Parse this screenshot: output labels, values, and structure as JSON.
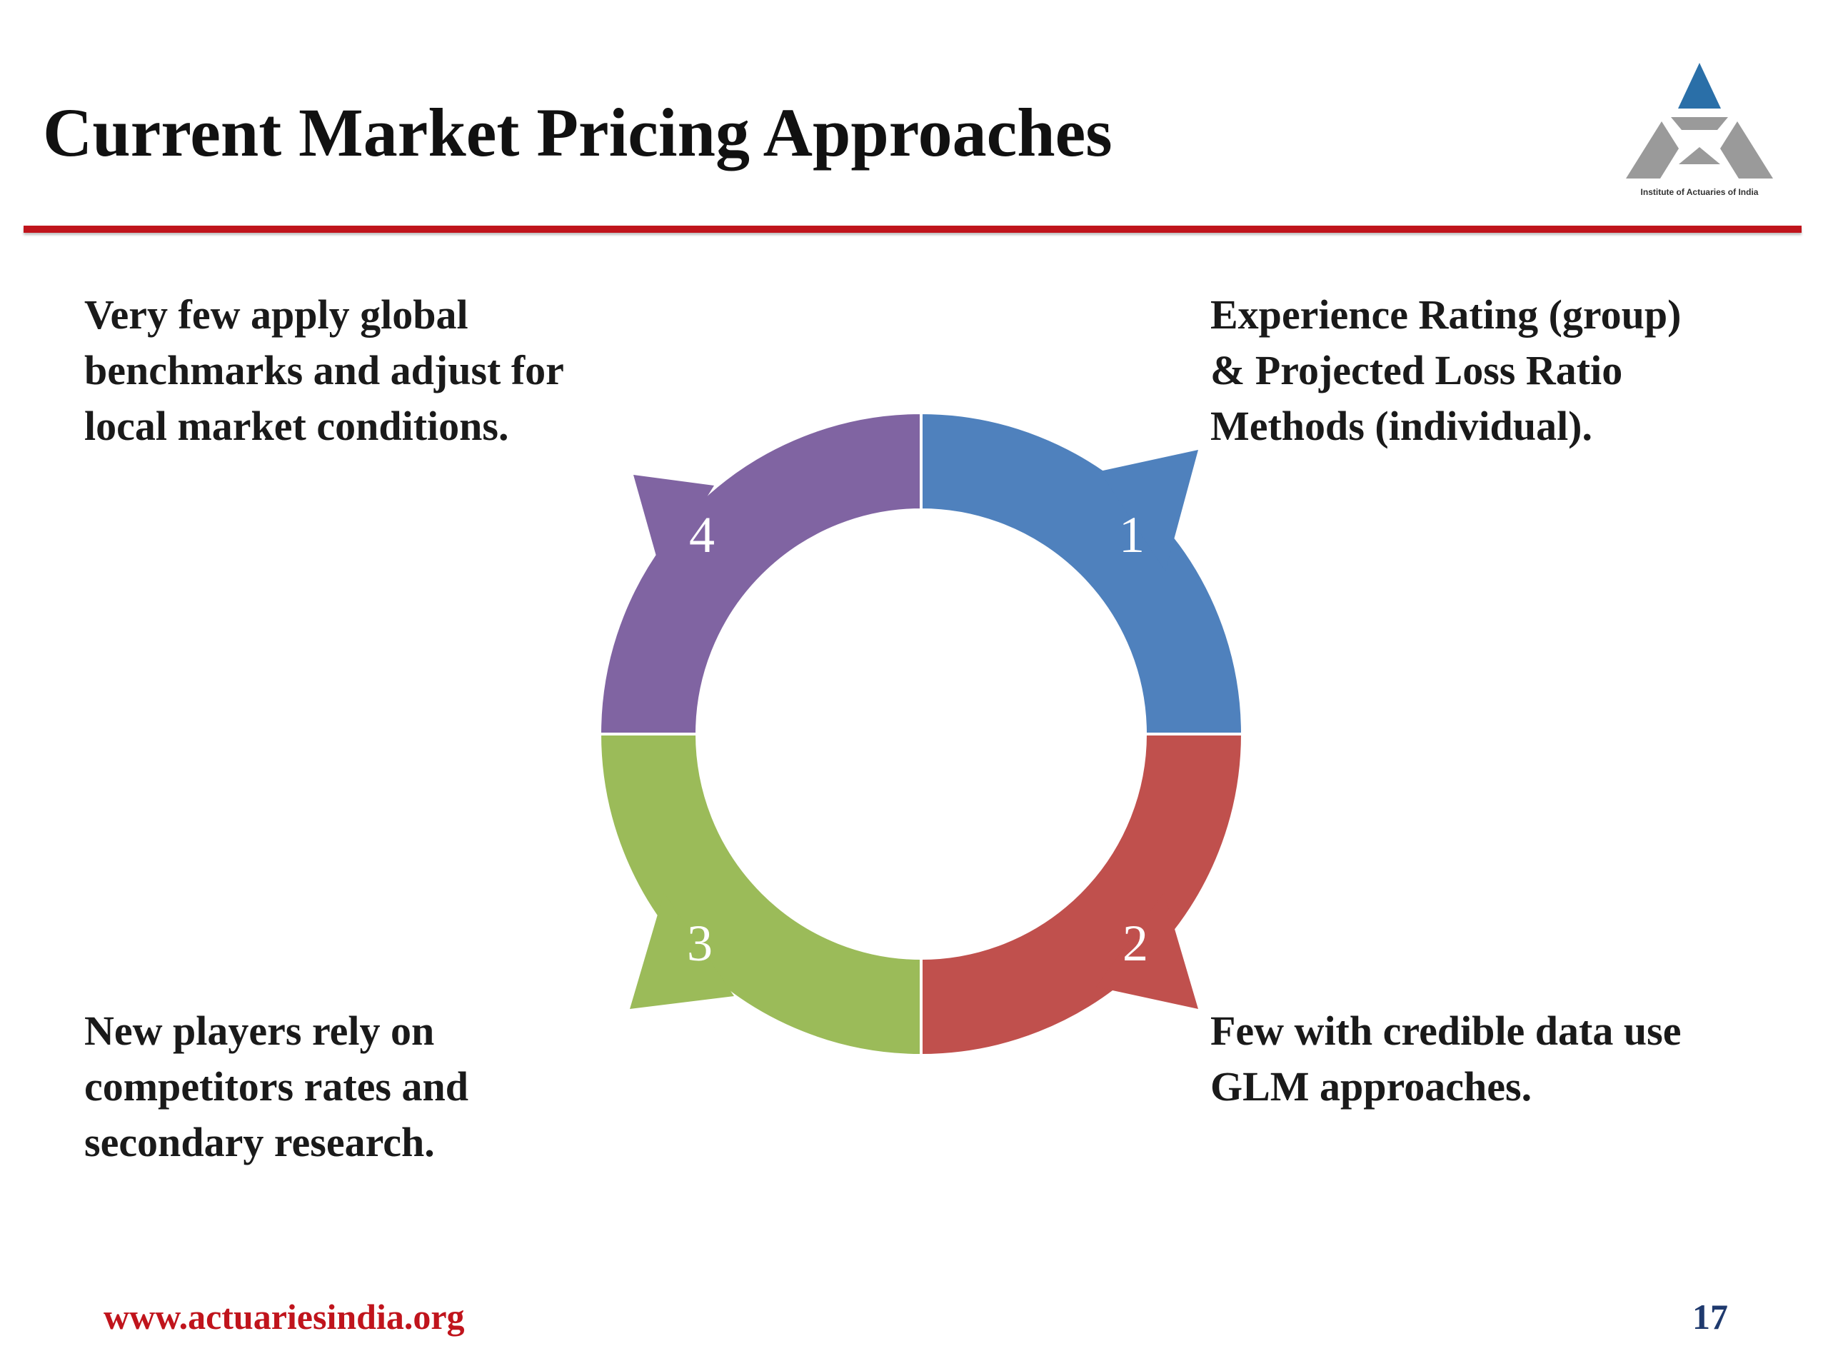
{
  "slide": {
    "title": "Current Market Pricing Approaches",
    "logo_text": "Institute of Actuaries of India",
    "footer_url": "www.actuariesindia.org",
    "page_number": "17"
  },
  "cycle": {
    "segments": [
      {
        "number": "1",
        "color": "#4f81bd",
        "text": "Experience Rating (group)\n& Projected Loss Ratio\nMethods (individual)."
      },
      {
        "number": "2",
        "color": "#c0504d",
        "text": "Few with credible data use\nGLM approaches."
      },
      {
        "number": "3",
        "color": "#9bbb59",
        "text": "New players rely on\ncompetitors rates and\nsecondary research."
      },
      {
        "number": "4",
        "color": "#8064a2",
        "text": "Very few apply global\nbenchmarks and adjust for\nlocal market conditions."
      }
    ]
  },
  "colors": {
    "accent_red": "#c0141c",
    "page_number": "#1f3a6e",
    "logo_blue": "#2a6fa8",
    "logo_gray": "#9a9a9a"
  }
}
